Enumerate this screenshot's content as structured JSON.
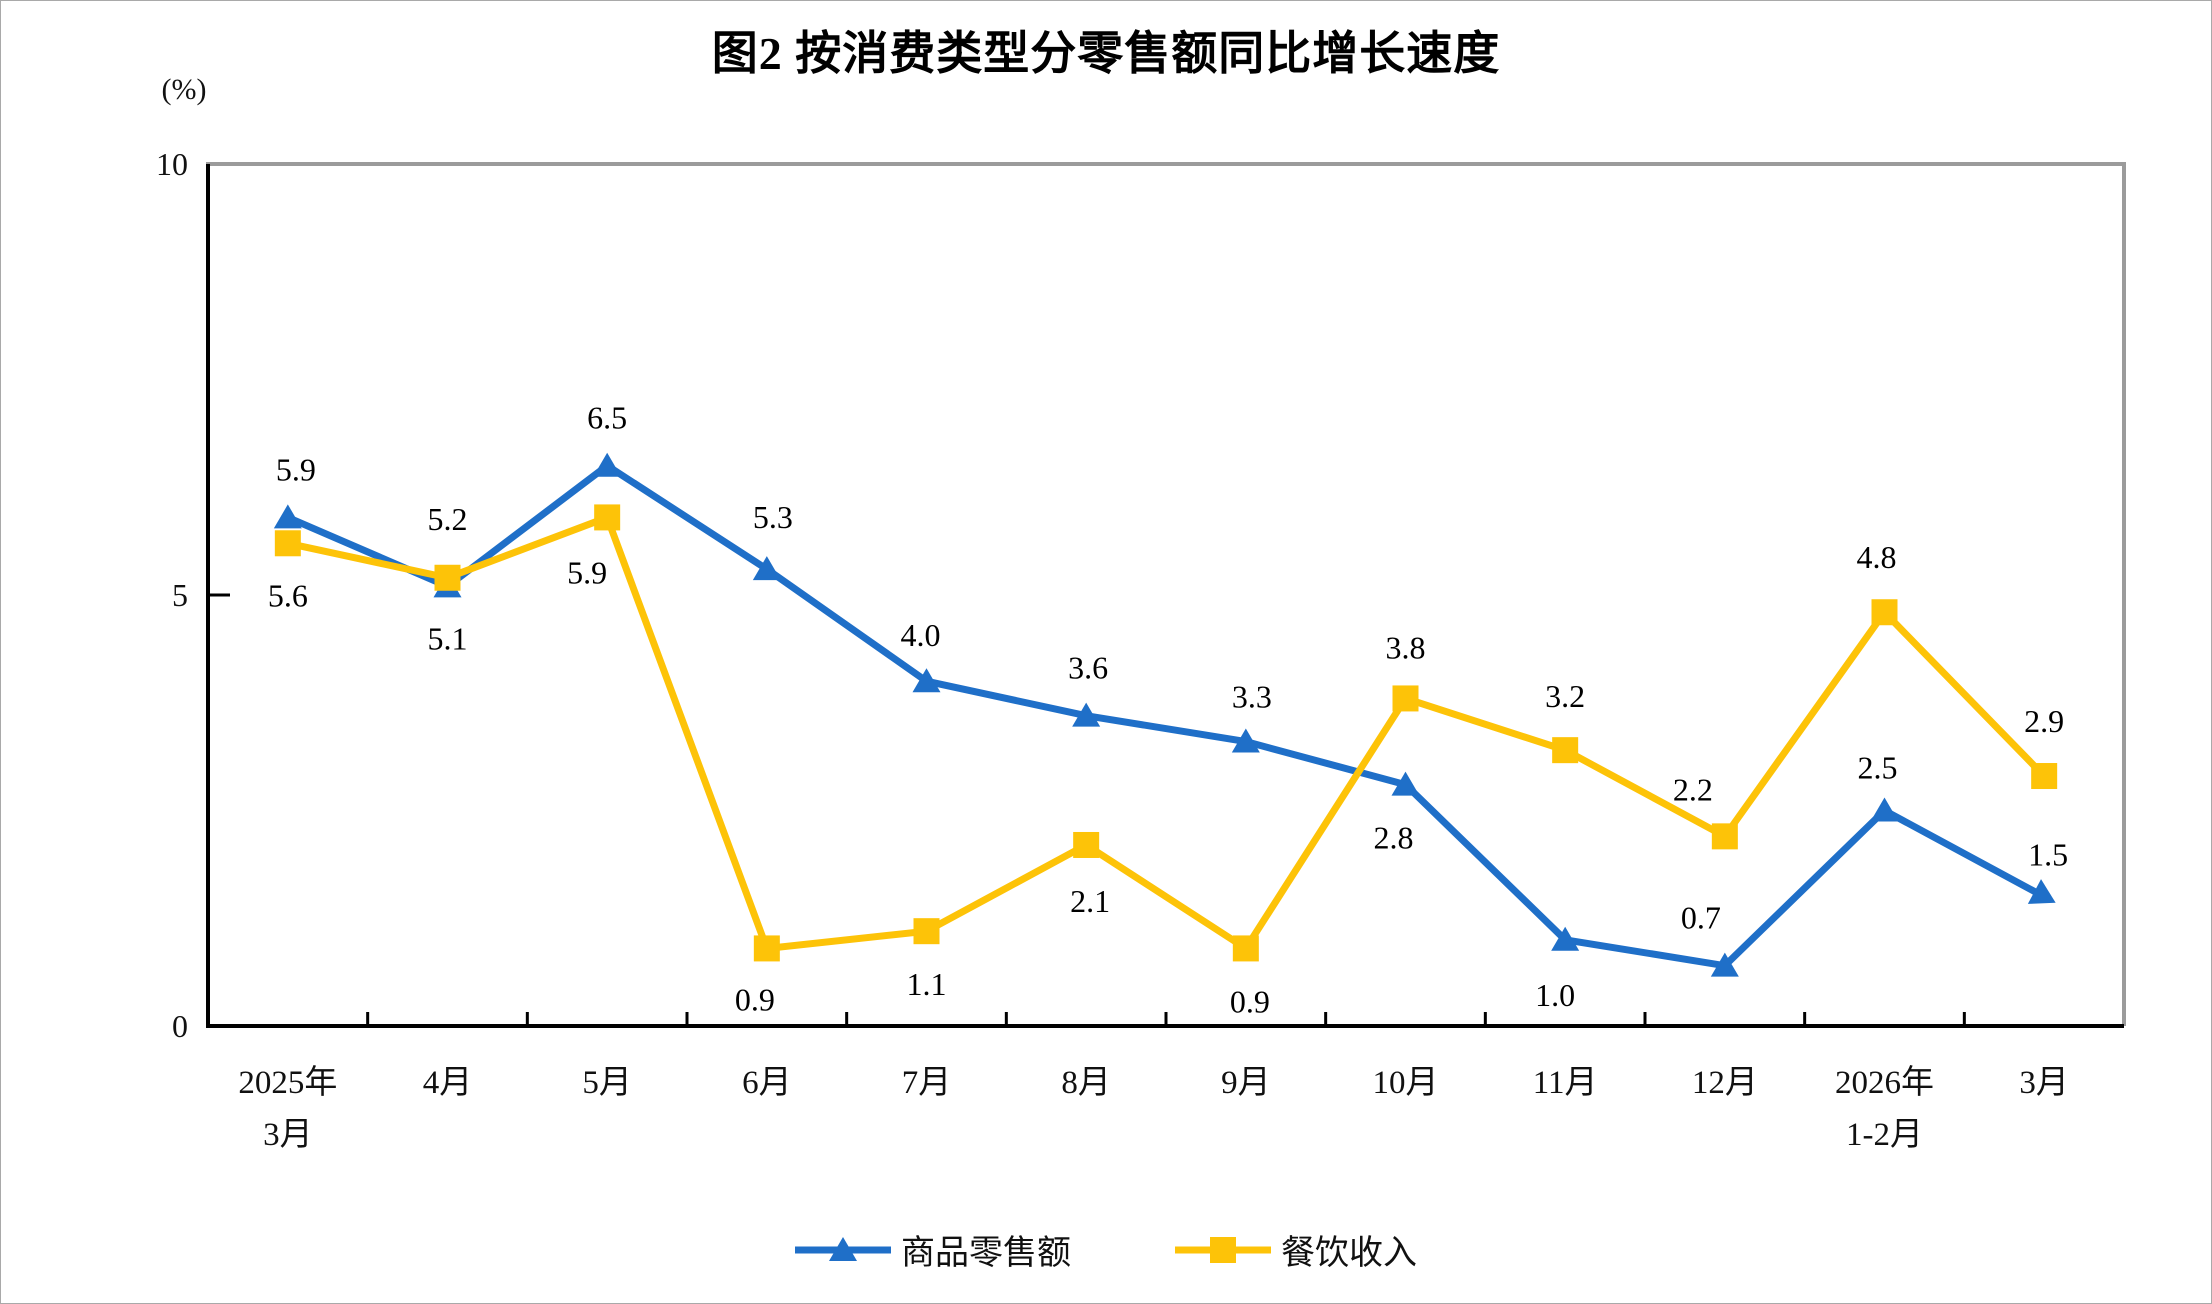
{
  "chart_data": {
    "type": "line",
    "title": "图2 按消费类型分零售额同比增长速度",
    "unit_label": "(%)",
    "xlabel": "",
    "ylabel": "(%)",
    "ylim": [
      0,
      10
    ],
    "y_ticks": [
      0,
      5,
      10
    ],
    "grid": false,
    "legend_position": "bottom",
    "categories": [
      [
        "2025年",
        "3月"
      ],
      [
        "4月"
      ],
      [
        "5月"
      ],
      [
        "6月"
      ],
      [
        "7月"
      ],
      [
        "8月"
      ],
      [
        "9月"
      ],
      [
        "10月"
      ],
      [
        "11月"
      ],
      [
        "12月"
      ],
      [
        "2026年",
        "1-2月"
      ],
      [
        "3月"
      ]
    ],
    "series": [
      {
        "name": "商品零售额",
        "marker": "triangle",
        "color": "#1F6FC8",
        "values": [
          5.9,
          5.1,
          6.5,
          5.3,
          4.0,
          3.6,
          3.3,
          2.8,
          1.0,
          0.7,
          2.5,
          1.5
        ]
      },
      {
        "name": "餐饮收入",
        "marker": "square",
        "color": "#FDC308",
        "values": [
          5.6,
          5.2,
          5.9,
          0.9,
          1.1,
          2.1,
          0.9,
          3.8,
          3.2,
          2.2,
          4.8,
          2.9
        ]
      }
    ],
    "colors": {
      "axis": "#000000",
      "plot_border": "#9B9B9B",
      "text": "#111111"
    }
  }
}
